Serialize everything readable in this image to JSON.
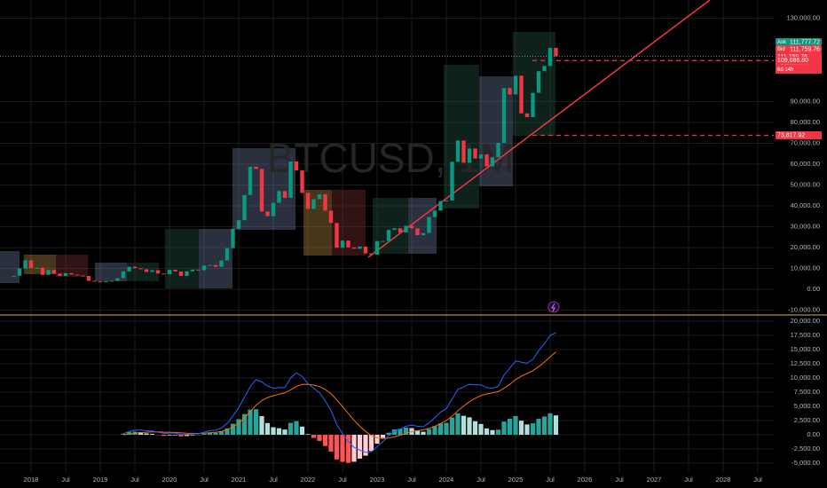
{
  "chart_data": {
    "type": "candlestick",
    "title": "BTCUSD, 1M",
    "x": [
      "2017-10",
      "2017-11",
      "2017-12",
      "2018-01",
      "2018-02",
      "2018-03",
      "2018-04",
      "2018-05",
      "2018-06",
      "2018-07",
      "2018-08",
      "2018-09",
      "2018-10",
      "2018-11",
      "2018-12",
      "2019-01",
      "2019-02",
      "2019-03",
      "2019-04",
      "2019-05",
      "2019-06",
      "2019-07",
      "2019-08",
      "2019-09",
      "2019-10",
      "2019-11",
      "2019-12",
      "2020-01",
      "2020-02",
      "2020-03",
      "2020-04",
      "2020-05",
      "2020-06",
      "2020-07",
      "2020-08",
      "2020-09",
      "2020-10",
      "2020-11",
      "2020-12",
      "2021-01",
      "2021-02",
      "2021-03",
      "2021-04",
      "2021-05",
      "2021-06",
      "2021-07",
      "2021-08",
      "2021-09",
      "2021-10",
      "2021-11",
      "2021-12",
      "2022-01",
      "2022-02",
      "2022-03",
      "2022-04",
      "2022-05",
      "2022-06",
      "2022-07",
      "2022-08",
      "2022-09",
      "2022-10",
      "2022-11",
      "2022-12",
      "2023-01",
      "2023-02",
      "2023-03",
      "2023-04",
      "2023-05",
      "2023-06",
      "2023-07",
      "2023-08",
      "2023-09",
      "2023-10",
      "2023-11",
      "2023-12",
      "2024-01",
      "2024-02",
      "2024-03",
      "2024-04",
      "2024-05",
      "2024-06",
      "2024-07",
      "2024-08",
      "2024-09",
      "2024-10",
      "2024-11",
      "2024-12",
      "2025-01",
      "2025-02",
      "2025-03",
      "2025-04",
      "2025-05",
      "2025-06",
      "2025-07",
      "2025-08"
    ],
    "close": [
      6450,
      10000,
      13850,
      10200,
      10300,
      6900,
      9240,
      7500,
      6390,
      7730,
      7030,
      6625,
      6370,
      4040,
      3740,
      3440,
      3810,
      4100,
      5320,
      8550,
      10820,
      10080,
      9590,
      8290,
      9150,
      7540,
      7190,
      9350,
      8540,
      6410,
      8620,
      9450,
      9140,
      11320,
      11650,
      10780,
      13800,
      19700,
      28990,
      33100,
      45200,
      58800,
      57700,
      37300,
      35040,
      41460,
      47100,
      43800,
      61300,
      57000,
      46200,
      38500,
      43200,
      45500,
      37700,
      31800,
      19900,
      23300,
      20050,
      19420,
      20490,
      17170,
      16540,
      23130,
      23140,
      28480,
      29250,
      27220,
      30470,
      29230,
      25940,
      26970,
      34640,
      37720,
      42280,
      42580,
      61130,
      71330,
      60640,
      67490,
      62680,
      64630,
      58970,
      63330,
      70220,
      96450,
      93430,
      102400,
      84370,
      82550,
      94200,
      104600,
      107100,
      115760,
      111760
    ],
    "macd": [
      null,
      null,
      null,
      null,
      null,
      null,
      null,
      null,
      null,
      null,
      null,
      null,
      null,
      null,
      null,
      null,
      null,
      null,
      null,
      200,
      600,
      800,
      850,
      700,
      650,
      450,
      250,
      300,
      300,
      50,
      50,
      150,
      200,
      450,
      700,
      800,
      1200,
      2000,
      3300,
      4800,
      6600,
      8500,
      9700,
      9300,
      8600,
      8200,
      8300,
      8300,
      10000,
      10900,
      10300,
      9000,
      8200,
      7400,
      6000,
      4300,
      1800,
      200,
      -1200,
      -2200,
      -2700,
      -3100,
      -3000,
      -2100,
      -1200,
      -200,
      600,
      1000,
      1500,
      1700,
      1500,
      1400,
      2100,
      3000,
      4000,
      4600,
      6300,
      8000,
      8400,
      8900,
      8800,
      8800,
      8300,
      8200,
      8500,
      10500,
      11700,
      13000,
      12800,
      12600,
      13300,
      14800,
      16000,
      17500,
      18000
    ],
    "signal": [
      null,
      null,
      null,
      null,
      null,
      null,
      null,
      null,
      null,
      null,
      null,
      null,
      null,
      null,
      null,
      null,
      null,
      null,
      null,
      0,
      100,
      250,
      380,
      450,
      500,
      500,
      450,
      420,
      400,
      330,
      270,
      250,
      240,
      280,
      360,
      450,
      600,
      880,
      1360,
      2050,
      2960,
      4070,
      5200,
      6020,
      6540,
      6870,
      7150,
      7380,
      7900,
      8500,
      8860,
      8890,
      8750,
      8480,
      7980,
      7250,
      6160,
      4970,
      3740,
      2550,
      1500,
      580,
      -140,
      -530,
      -660,
      -570,
      -340,
      -70,
      240,
      530,
      720,
      860,
      1110,
      1490,
      1990,
      2510,
      3270,
      4220,
      5060,
      5830,
      6420,
      6900,
      7180,
      7380,
      7600,
      8180,
      8880,
      9700,
      10320,
      10780,
      11280,
      11990,
      12790,
      13730,
      14590
    ],
    "histogram": [
      null,
      null,
      null,
      null,
      null,
      null,
      null,
      null,
      null,
      null,
      null,
      null,
      null,
      null,
      null,
      null,
      null,
      null,
      null,
      200,
      500,
      550,
      470,
      250,
      150,
      -50,
      -200,
      -120,
      -100,
      -280,
      -220,
      -100,
      -40,
      170,
      340,
      350,
      600,
      1120,
      1940,
      2750,
      3640,
      4430,
      4500,
      3280,
      2060,
      1330,
      1150,
      920,
      2100,
      2400,
      1440,
      110,
      -550,
      -1080,
      -1980,
      -2950,
      -4360,
      -4770,
      -4940,
      -4750,
      -4200,
      -3680,
      -2860,
      -1570,
      -540,
      370,
      940,
      1070,
      1260,
      1170,
      780,
      540,
      990,
      1510,
      2010,
      2090,
      3030,
      3780,
      3340,
      3070,
      2380,
      1900,
      1120,
      820,
      900,
      2320,
      2820,
      3300,
      2480,
      1820,
      2020,
      2810,
      3210,
      3770,
      3410
    ],
    "colors": {
      "up": "#089981",
      "down": "#f23645",
      "macd": "#2962ff",
      "signal": "#ff6d00",
      "hist_up_rising": "#26a69a",
      "hist_up_falling": "#b2dfdb",
      "hist_down_falling": "#ff5252",
      "hist_down_rising": "#ffcdd2"
    },
    "ylim": [
      -12340,
      138723
    ],
    "yticks": [
      {
        "value": 130000,
        "label": "130,000.00"
      },
      {
        "value": 90000,
        "label": "90,000.00"
      },
      {
        "value": 80000,
        "label": "80,000.00"
      },
      {
        "value": 70000,
        "label": "70,000.00"
      },
      {
        "value": 60000,
        "label": "60,000.00"
      },
      {
        "value": 50000,
        "label": "50,000.00"
      },
      {
        "value": 40000,
        "label": "40,000.00"
      },
      {
        "value": 30000,
        "label": "30,000.00"
      },
      {
        "value": 20000,
        "label": "20,000.00"
      },
      {
        "value": 10000,
        "label": "10,000.00"
      },
      {
        "value": 0,
        "label": "0.00"
      },
      {
        "value": -10000,
        "label": "-10,000.00"
      }
    ],
    "y2lim": [
      -7030,
      20780
    ],
    "y2ticks": [
      {
        "value": 20000,
        "label": "20,000.00"
      },
      {
        "value": 17500,
        "label": "17,500.00"
      },
      {
        "value": 15000,
        "label": "15,000.00"
      },
      {
        "value": 12500,
        "label": "12,500.00"
      },
      {
        "value": 10000,
        "label": "10,000.00"
      },
      {
        "value": 7500,
        "label": "7,500.00"
      },
      {
        "value": 5000,
        "label": "5,000.00"
      },
      {
        "value": 2500,
        "label": "2,500.00"
      },
      {
        "value": 0,
        "label": "0.00"
      },
      {
        "value": -2500,
        "label": "-2,500.00"
      },
      {
        "value": -5000,
        "label": "-5,000.00"
      }
    ],
    "xticks": [
      {
        "value": "2018-01",
        "label": "2018"
      },
      {
        "value": "2018-07",
        "label": "Jul"
      },
      {
        "value": "2019-01",
        "label": "2019"
      },
      {
        "value": "2019-07",
        "label": "Jul"
      },
      {
        "value": "2020-01",
        "label": "2020"
      },
      {
        "value": "2020-07",
        "label": "Jul"
      },
      {
        "value": "2021-01",
        "label": "2021"
      },
      {
        "value": "2021-07",
        "label": "Jul"
      },
      {
        "value": "2022-01",
        "label": "2022"
      },
      {
        "value": "2022-07",
        "label": "Jul"
      },
      {
        "value": "2023-01",
        "label": "2023"
      },
      {
        "value": "2023-07",
        "label": "Jul"
      },
      {
        "value": "2024-01",
        "label": "2024"
      },
      {
        "value": "2024-07",
        "label": "Jul"
      },
      {
        "value": "2025-01",
        "label": "2025"
      },
      {
        "value": "2025-07",
        "label": "Jul"
      },
      {
        "value": "2026-01",
        "label": "2026"
      },
      {
        "value": "2026-07",
        "label": "Jul"
      },
      {
        "value": "2027-01",
        "label": "2027"
      },
      {
        "value": "2027-07",
        "label": "Jul"
      },
      {
        "value": "2028-01",
        "label": "2028"
      },
      {
        "value": "2028-07",
        "label": "Jul"
      }
    ],
    "grid": true,
    "ask": {
      "text": "Ask",
      "value": 111777.72,
      "label": "111,777.72",
      "color": "#089981"
    },
    "bid": {
      "text": "Bid",
      "value": 111759.76,
      "label": "111,759.76",
      "color": "#f23645"
    },
    "last": {
      "value": 111759.76,
      "label": "111,759.76",
      "change": "+2,262.90%",
      "countdown": "6d 14h",
      "color": "#f23645"
    },
    "price_lines": [
      {
        "value": 109686.8,
        "label": "109,686.80",
        "color": "#f23645"
      },
      {
        "value": 73817.92,
        "label": "73,817.92",
        "color": "#f23645"
      }
    ]
  }
}
